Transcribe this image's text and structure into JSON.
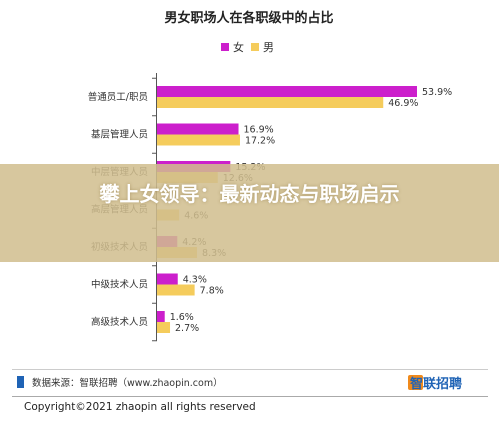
{
  "chart_data": {
    "type": "bar",
    "orientation": "horizontal",
    "title": "男女职场人在各职级中的占比",
    "categories": [
      "普通员工/职员",
      "基层管理人员",
      "中层管理人员",
      "高层管理人员",
      "初级技术人员",
      "中级技术人员",
      "高级技术人员"
    ],
    "series": [
      {
        "name": "女",
        "values": [
          53.9,
          16.9,
          15.2,
          null,
          4.2,
          4.3,
          1.6
        ],
        "labels": [
          "53.9%",
          "16.9%",
          "15.2%",
          "",
          "4.2%",
          "4.3%",
          "1.6%"
        ]
      },
      {
        "name": "男",
        "values": [
          46.9,
          17.2,
          12.6,
          4.6,
          8.3,
          7.8,
          2.7
        ],
        "labels": [
          "46.9%",
          "17.2%",
          "12.6%",
          "4.6%",
          "8.3%",
          "7.8%",
          "2.7%"
        ]
      }
    ],
    "xlim": [
      0,
      60
    ],
    "grid": false,
    "legend_position": "top"
  },
  "colors": {
    "female": "#cc1fcc",
    "male": "#f5cc5c",
    "banner": "#d0be8e",
    "brand_blue": "#1f63b5",
    "brand_orange": "#f08a1c"
  },
  "footer": {
    "source": "数据来源：智联招聘（www.zhaopin.com）",
    "brand_logo": "智联招聘",
    "copyright": "Copyright©2021 zhaopin all rights reserved"
  },
  "overlay": {
    "title": "攀上女领导：最新动态与职场启示"
  }
}
